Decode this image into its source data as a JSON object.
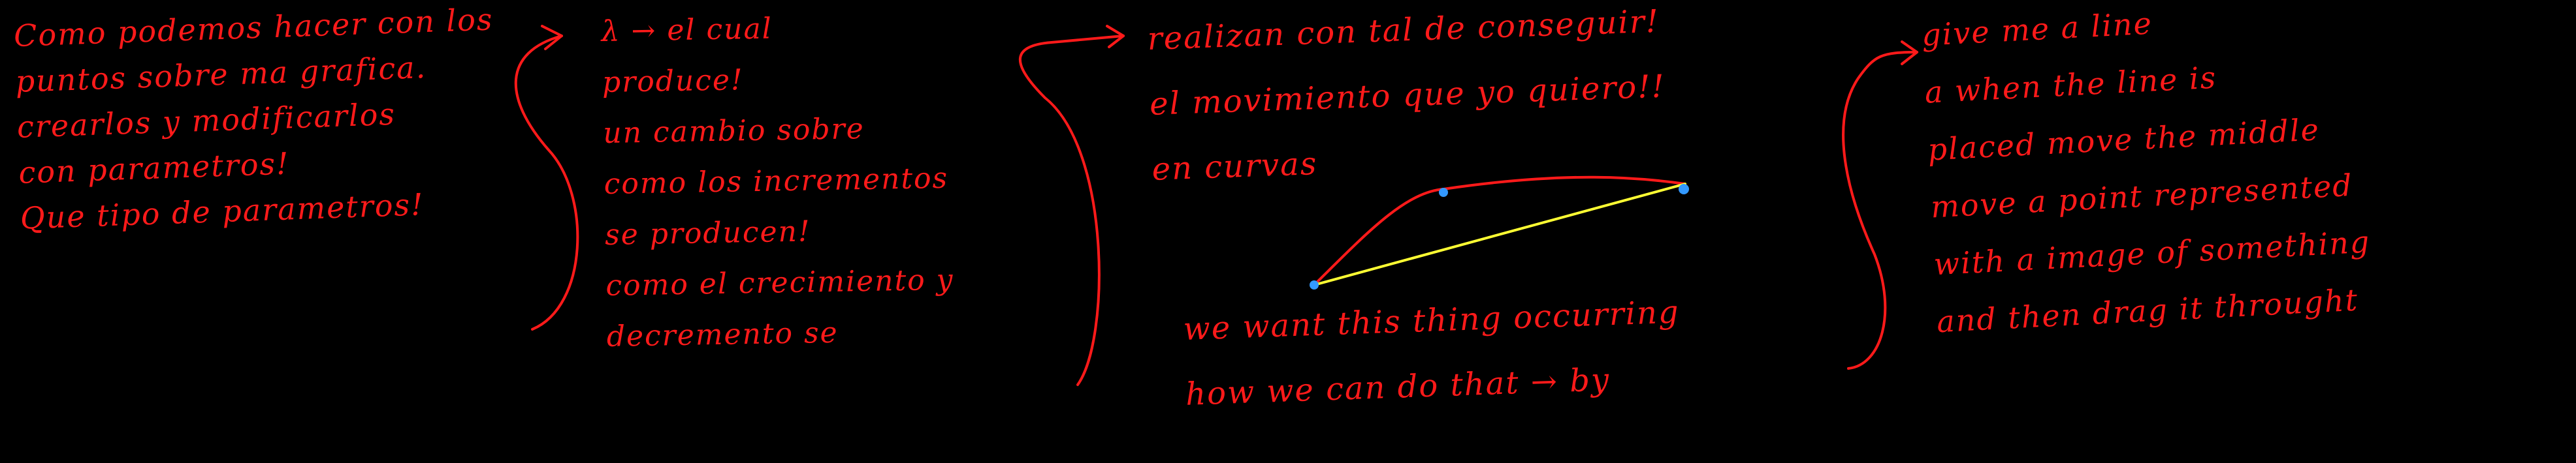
{
  "colors": {
    "background": "#000000",
    "ink_red": "#ff1a1a",
    "ink_yellow": "#ffff33",
    "ink_blue": "#3399ff"
  },
  "notes": {
    "col1": [
      "Como podemos hacer con los",
      "puntos sobre ma grafica.",
      "crearlos y modificarlos",
      "con parametros!",
      "Que tipo de parametros!"
    ],
    "col2": [
      "λ → el cual",
      "produce!",
      "un cambio sobre",
      "como los incrementos",
      "se producen!",
      "como el crecimiento y",
      "decremento se"
    ],
    "col3_top": [
      "realizan con tal de conseguir!",
      "el movimiento que yo quiero!!",
      "en curvas"
    ],
    "col3_bottom": [
      "we want this thing occurring",
      "how we can do that → by"
    ],
    "col4": [
      "give me a line",
      "a when the line is",
      "placed move the middle",
      "move a point represented",
      "with a image of something",
      "and then drag it throught"
    ]
  }
}
